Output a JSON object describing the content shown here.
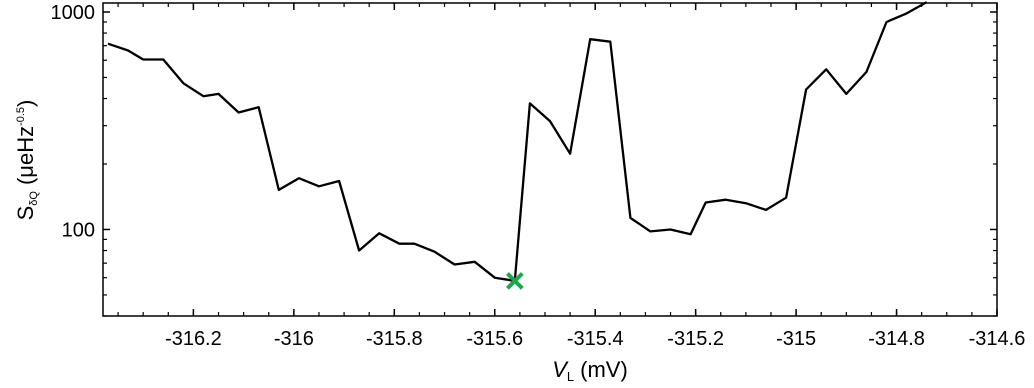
{
  "chart_data": {
    "type": "line",
    "xlabel": {
      "symbol": "V",
      "subscript": "L",
      "unit": "(mV)"
    },
    "ylabel": {
      "symbol": "S",
      "subscript": "δQ",
      "unit_prefix": "(μeHz",
      "unit_exponent": "-0.5",
      "unit_suffix": ")"
    },
    "x_scale": "linear",
    "y_scale": "log",
    "xlim": [
      -316.38,
      -314.6
    ],
    "ylim": [
      40,
      1100
    ],
    "x_ticks": [
      -316.2,
      -316,
      -315.8,
      -315.6,
      -315.4,
      -315.2,
      -315,
      -314.8,
      -314.6
    ],
    "x_tick_labels": [
      "-316.2",
      "-316",
      "-315.8",
      "-315.6",
      "-315.4",
      "-315.2",
      "-315",
      "-314.8",
      "-314.6"
    ],
    "y_ticks": [
      100,
      1000
    ],
    "y_tick_labels": [
      "100",
      "1000"
    ],
    "grid": false,
    "line_color": "#000000",
    "marker_color": "#1aa84b",
    "series": [
      {
        "x": [
          -316.37,
          -316.33,
          -316.3,
          -316.26,
          -316.22,
          -316.18,
          -316.15,
          -316.11,
          -316.07,
          -316.03,
          -315.99,
          -315.95,
          -315.91,
          -315.87,
          -315.83,
          -315.79,
          -315.76,
          -315.72,
          -315.68,
          -315.64,
          -315.6,
          -315.56,
          -315.53,
          -315.49,
          -315.45,
          -315.41,
          -315.37,
          -315.33,
          -315.29,
          -315.25,
          -315.21,
          -315.18,
          -315.14,
          -315.1,
          -315.06,
          -315.02,
          -314.98,
          -314.94,
          -314.9,
          -314.86,
          -314.82,
          -314.78,
          -314.74
        ],
        "y": [
          715,
          665,
          605,
          605,
          470,
          410,
          420,
          345,
          365,
          152,
          172,
          158,
          167,
          80,
          96,
          86,
          86,
          79,
          69,
          71,
          60,
          58,
          380,
          315,
          223,
          750,
          730,
          113,
          98,
          100,
          95,
          133,
          137,
          132,
          123,
          140,
          440,
          545,
          420,
          530,
          900,
          985,
          1110
        ]
      }
    ],
    "highlight": {
      "x": -315.56,
      "y": 58,
      "marker": "x"
    }
  }
}
